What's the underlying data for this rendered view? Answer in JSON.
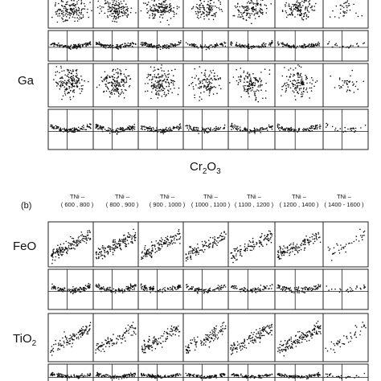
{
  "figure": {
    "panel_a": {
      "row_labels": [
        "Ga"
      ],
      "xlabel_main": "Cr",
      "xlabel_sub1": "2",
      "xlabel_mid": "O",
      "xlabel_sub2": "3"
    },
    "panel_b": {
      "tag": "(b)",
      "col_headers": [
        {
          "top": "TNi –",
          "bottom": "( 600 , 800 )"
        },
        {
          "top": "TNi –",
          "bottom": "( 800 , 900 )"
        },
        {
          "top": "TNi –",
          "bottom": "( 900 , 1000 )"
        },
        {
          "top": "TNi –",
          "bottom": "( 1000 , 1100 )"
        },
        {
          "top": "TNi –",
          "bottom": "( 1100 , 1200 )"
        },
        {
          "top": "TNi –",
          "bottom": "( 1200 , 1400 )"
        },
        {
          "top": "TNi –",
          "bottom": "( 1400 - 1600 )"
        }
      ],
      "row_labels": [
        "FeO",
        "TiO"
      ],
      "tio_sub": "2"
    }
  },
  "chart_data": [
    {
      "type": "scatter",
      "panel": "a",
      "title": "",
      "xlabel": "Cr2O3",
      "rows": [
        "Ga"
      ],
      "columns": 7,
      "series": [
        {
          "row": "Ga",
          "kind": "scatter",
          "densities": [
            0.9,
            0.85,
            0.85,
            0.6,
            0.7,
            0.75,
            0.2
          ]
        },
        {
          "row": "Ga",
          "kind": "residual",
          "densities": [
            0.9,
            0.85,
            0.85,
            0.6,
            0.7,
            0.75,
            0.2
          ]
        }
      ]
    },
    {
      "type": "scatter",
      "panel": "b",
      "title": "",
      "rows": [
        "FeO",
        "TiO2"
      ],
      "categories": [
        "(600, 800)",
        "(800, 900)",
        "(900, 1000)",
        "(1000, 1100)",
        "(1100, 1200)",
        "(1200, 1400)",
        "(1400 - 1600)"
      ],
      "series": [
        {
          "row": "FeO",
          "kind": "scatter",
          "densities": [
            0.85,
            0.8,
            0.7,
            0.6,
            0.6,
            0.7,
            0.2
          ]
        },
        {
          "row": "FeO",
          "kind": "residual",
          "densities": [
            0.85,
            0.8,
            0.7,
            0.6,
            0.6,
            0.7,
            0.2
          ]
        },
        {
          "row": "TiO2",
          "kind": "scatter",
          "densities": [
            0.6,
            0.5,
            0.6,
            0.6,
            0.7,
            0.8,
            0.25
          ]
        },
        {
          "row": "TiO2",
          "kind": "residual",
          "densities": [
            0.8,
            0.8,
            0.8,
            0.7,
            0.7,
            0.8,
            0.2
          ]
        }
      ]
    }
  ]
}
